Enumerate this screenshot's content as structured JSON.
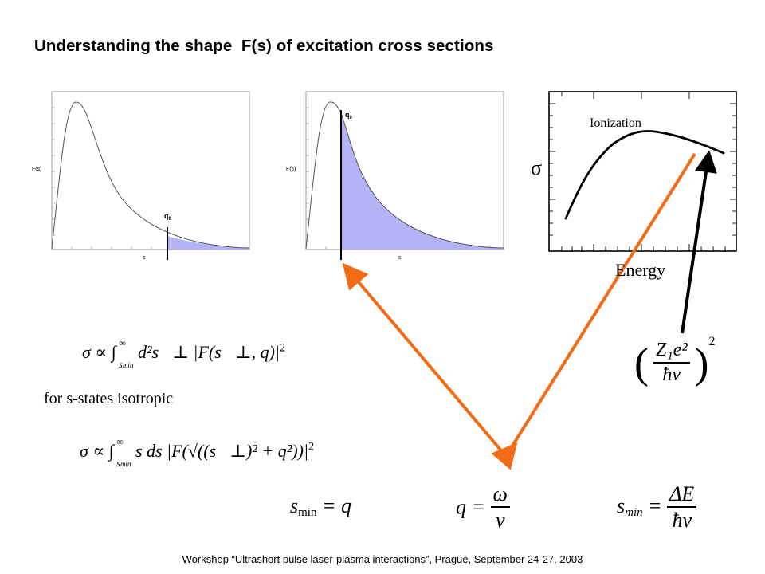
{
  "title": "Understanding the shape  F(s) of excitation cross sections",
  "footer": "Workshop “Ultrashort pulse laser-plasma interactions”, Prague, September 24-27, 2003",
  "plot1": {
    "ylabel": "F(s)",
    "xlabel": "s",
    "marker": "q",
    "marker_sub": "0"
  },
  "plot2": {
    "ylabel": "F(s)",
    "xlabel": "s",
    "marker": "q",
    "marker_sub": "0"
  },
  "plot3": {
    "curve_label": "Ionization",
    "ylabel": "σ",
    "xlabel": "Energy"
  },
  "eq1": {
    "prefix": "σ ∝ ∫",
    "upper": "∞",
    "lower": "s",
    "lower_sub": "min",
    "body": "d²s⃗⊥ |F(s⃗⊥, q)|",
    "power": "2"
  },
  "isotropic_note": "for s-states isotropic",
  "eq2": {
    "prefix": "σ ∝ ∫",
    "upper": "∞",
    "lower": "s",
    "lower_sub": "min",
    "body": "s ds |F(√((s⃗⊥)² + q²))|",
    "power": "2"
  },
  "eq3": {
    "lhs": "s",
    "lhs_sub": "min",
    "rhs": "= q"
  },
  "eq4": {
    "lhs": "q =",
    "num": "ω",
    "den": "v"
  },
  "eq5": {
    "lhs": "s",
    "lhs_sub": "min",
    "eq": "=",
    "num": "ΔE",
    "den": "ħv"
  },
  "eq6": {
    "num": "Z₁e²",
    "den": "ħv",
    "power": "2"
  },
  "colors": {
    "arrow_orange": "#f26b16",
    "fill_blue": "#b3b3f5",
    "black": "#000000"
  }
}
